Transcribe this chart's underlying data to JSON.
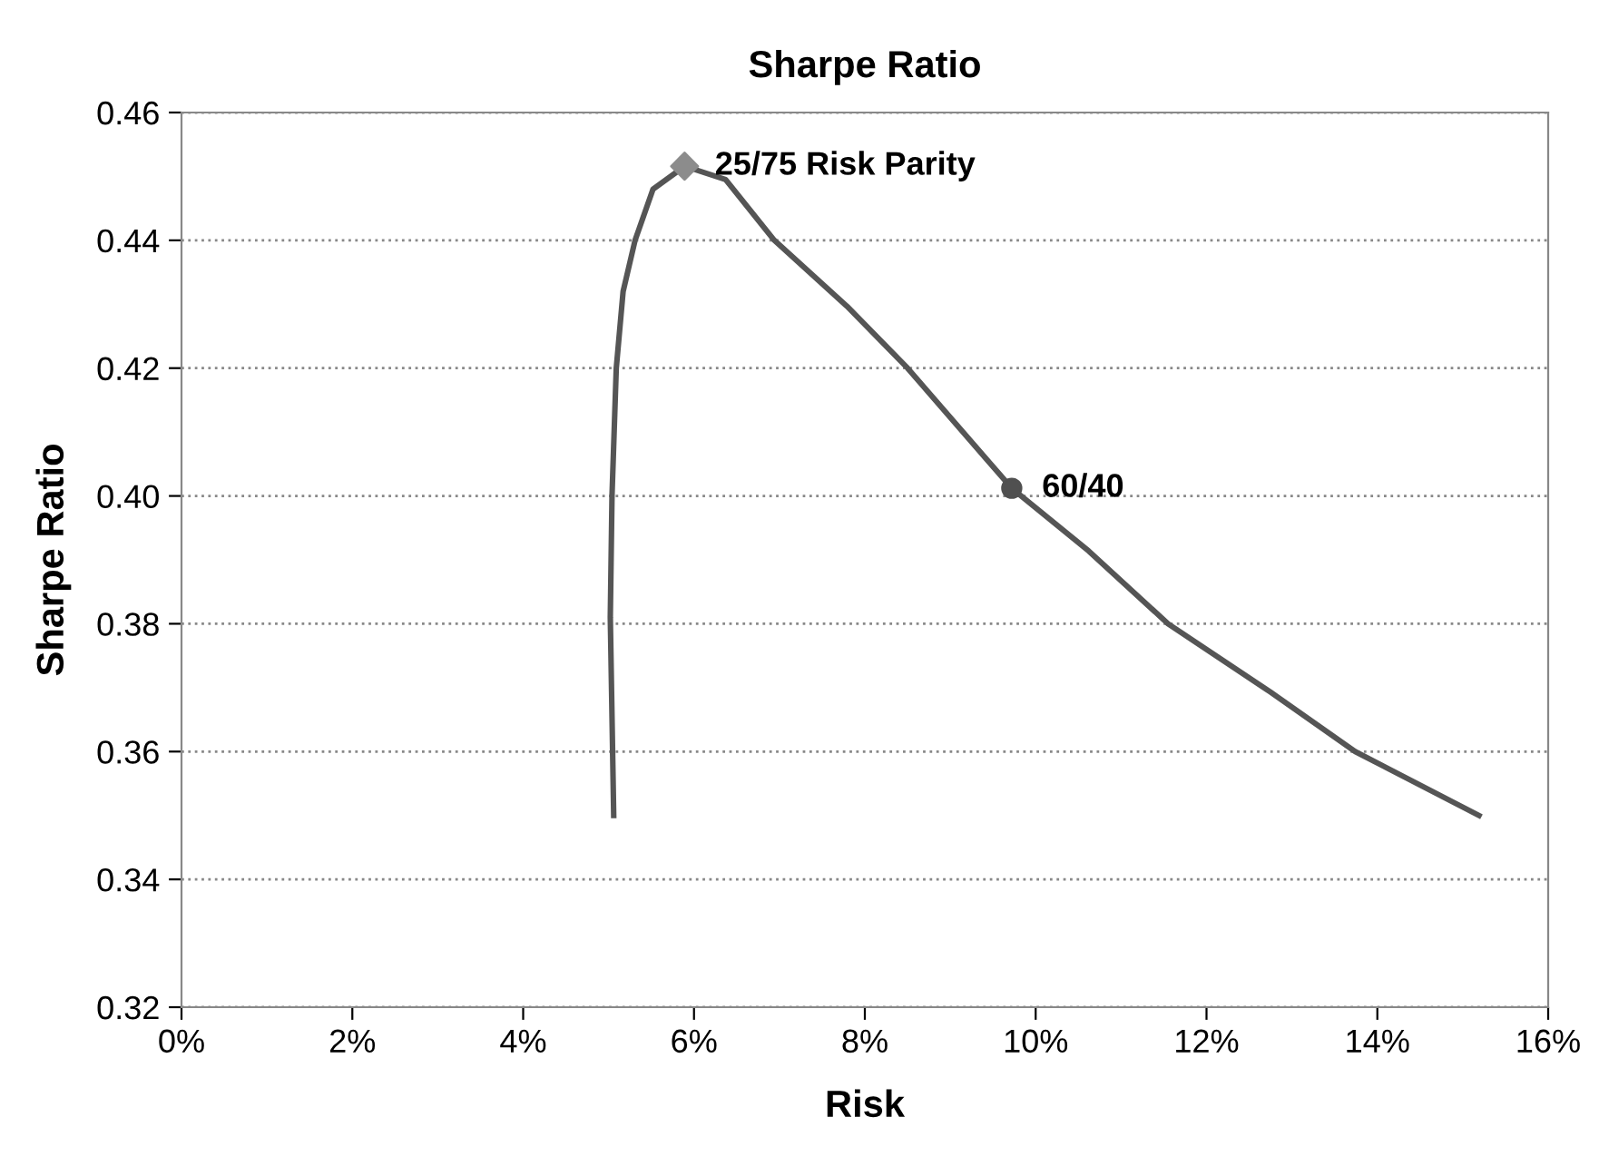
{
  "chart_data": {
    "type": "line",
    "title": "Sharpe Ratio",
    "xlabel": "Risk",
    "ylabel": "Sharpe Ratio",
    "xlim": [
      0,
      16
    ],
    "xticks": [
      {
        "value": 0,
        "label": "0%"
      },
      {
        "value": 2,
        "label": "2%"
      },
      {
        "value": 4,
        "label": "4%"
      },
      {
        "value": 6,
        "label": "6%"
      },
      {
        "value": 8,
        "label": "8%"
      },
      {
        "value": 10,
        "label": "10%"
      },
      {
        "value": 12,
        "label": "12%"
      },
      {
        "value": 14,
        "label": "14%"
      },
      {
        "value": 16,
        "label": "16%"
      }
    ],
    "ylim": [
      0.32,
      0.46
    ],
    "yticks": [
      {
        "value": 0.32,
        "label": "0.32"
      },
      {
        "value": 0.34,
        "label": "0.34"
      },
      {
        "value": 0.36,
        "label": "0.36"
      },
      {
        "value": 0.38,
        "label": "0.38"
      },
      {
        "value": 0.4,
        "label": "0.40"
      },
      {
        "value": 0.42,
        "label": "0.42"
      },
      {
        "value": 0.44,
        "label": "0.44"
      },
      {
        "value": 0.46,
        "label": "0.46"
      }
    ],
    "grid": "y",
    "legend": false,
    "series": [
      {
        "color": "#555555",
        "marker": "none",
        "line_style": "solid",
        "x": [
          5.06,
          5.02,
          5.04,
          5.09,
          5.17,
          5.31,
          5.52,
          5.89,
          6.37,
          6.94,
          7.79,
          8.5,
          9.72,
          10.62,
          11.55,
          12.75,
          13.74,
          15.19
        ],
        "values": [
          0.35,
          0.381,
          0.4,
          0.42,
          0.432,
          0.44,
          0.448,
          0.4516,
          0.4495,
          0.44,
          0.4297,
          0.42,
          0.4012,
          0.3914,
          0.38,
          0.3693,
          0.36,
          0.35
        ]
      },
      {
        "type": "scatter",
        "color": "#8c8c8c",
        "marker": "diamond",
        "x": [
          5.89
        ],
        "values": [
          0.4516
        ]
      },
      {
        "type": "scatter",
        "color": "#505050",
        "marker": "circle",
        "x": [
          9.72
        ],
        "values": [
          0.4012
        ]
      }
    ],
    "annotations": [
      {
        "text": "25/75 Risk Parity",
        "x": 5.89,
        "y": 0.4516
      },
      {
        "text": "60/40",
        "x": 9.72,
        "y": 0.4012
      }
    ]
  }
}
